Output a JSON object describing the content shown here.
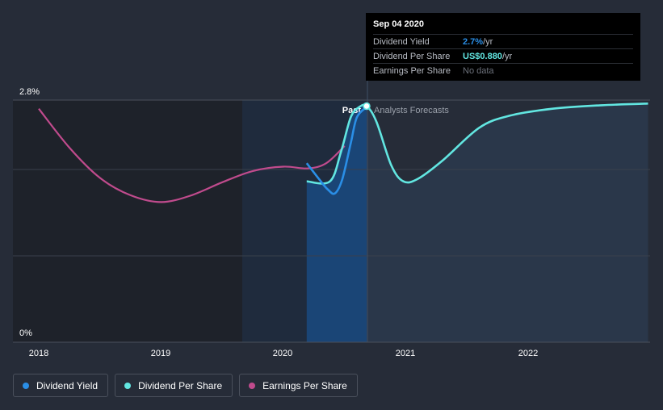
{
  "chart_data": {
    "type": "line",
    "ylim": [
      0,
      2.8
    ],
    "y_ticks": [
      "2.8%",
      "0%"
    ],
    "x_ticks": [
      "2018",
      "2019",
      "2020",
      "2021",
      "2022"
    ],
    "regions": {
      "past_label": "Past",
      "forecast_label": "Analysts Forecasts"
    },
    "series": [
      {
        "name": "Dividend Yield",
        "color": "#2a8ee6",
        "points": [
          [
            2020.19,
            2.07
          ],
          [
            2020.3,
            1.87
          ],
          [
            2020.36,
            1.77
          ],
          [
            2020.42,
            1.72
          ],
          [
            2020.48,
            1.88
          ],
          [
            2020.55,
            2.3
          ],
          [
            2020.6,
            2.6
          ],
          [
            2020.68,
            2.72
          ]
        ]
      },
      {
        "name": "Dividend Per Share",
        "color": "#62e6e1",
        "points": [
          [
            2020.19,
            1.86
          ],
          [
            2020.38,
            1.86
          ],
          [
            2020.47,
            2.2
          ],
          [
            2020.55,
            2.6
          ],
          [
            2020.62,
            2.72
          ],
          [
            2020.68,
            2.73
          ],
          [
            2020.76,
            2.55
          ],
          [
            2020.88,
            2.05
          ],
          [
            2020.98,
            1.86
          ],
          [
            2021.1,
            1.89
          ],
          [
            2021.3,
            2.1
          ],
          [
            2021.6,
            2.48
          ],
          [
            2021.85,
            2.62
          ],
          [
            2022.2,
            2.7
          ],
          [
            2022.6,
            2.74
          ],
          [
            2022.98,
            2.76
          ]
        ]
      },
      {
        "name": "Earnings Per Share",
        "color": "#c04b8d",
        "points": [
          [
            2018.0,
            2.7
          ],
          [
            2018.25,
            2.25
          ],
          [
            2018.5,
            1.9
          ],
          [
            2018.75,
            1.7
          ],
          [
            2019.0,
            1.62
          ],
          [
            2019.25,
            1.7
          ],
          [
            2019.5,
            1.85
          ],
          [
            2019.75,
            1.98
          ],
          [
            2020.0,
            2.03
          ],
          [
            2020.2,
            2.01
          ],
          [
            2020.35,
            2.07
          ],
          [
            2020.5,
            2.27
          ]
        ]
      }
    ],
    "highlight": {
      "x": 2020.68,
      "y": 2.73
    }
  },
  "tooltip": {
    "date": "Sep 04 2020",
    "rows": [
      {
        "label": "Dividend Yield",
        "value": "2.7%",
        "unit": " /yr",
        "color": "#2a8ee6"
      },
      {
        "label": "Dividend Per Share",
        "value": "US$0.880",
        "unit": " /yr",
        "color": "#62e6e1"
      },
      {
        "label": "Earnings Per Share",
        "value": "No data",
        "unit": "",
        "color": "#6c717b"
      }
    ]
  },
  "legend": [
    {
      "label": "Dividend Yield",
      "color": "#2a8ee6"
    },
    {
      "label": "Dividend Per Share",
      "color": "#62e6e1"
    },
    {
      "label": "Earnings Per Share",
      "color": "#c04b8d"
    }
  ]
}
